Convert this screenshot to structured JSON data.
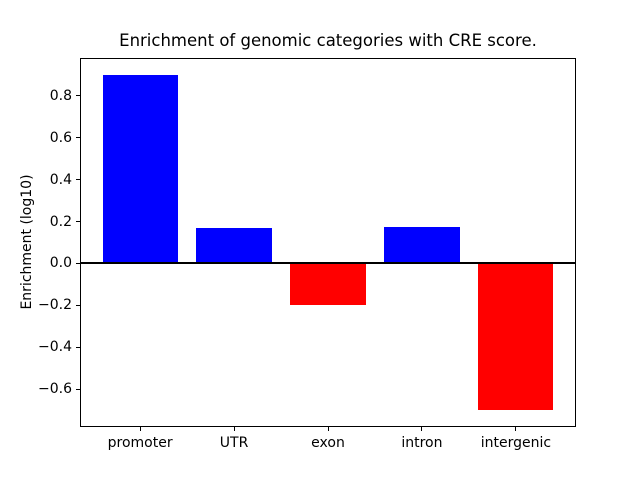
{
  "figure": {
    "title": "Enrichment of genomic categories with CRE score.",
    "ylabel": "Enrichment (log10)"
  },
  "chart_data": {
    "type": "bar",
    "title": "Enrichment of genomic categories with CRE score.",
    "xlabel": "",
    "ylabel": "Enrichment (log10)",
    "categories": [
      "promoter",
      "UTR",
      "exon",
      "intron",
      "intergenic"
    ],
    "values": [
      0.9,
      0.17,
      -0.2,
      0.175,
      -0.7
    ],
    "bar_colors": [
      "#0000ff",
      "#0000ff",
      "#ff0000",
      "#0000ff",
      "#ff0000"
    ],
    "positive_color": "#0000ff",
    "negative_color": "#ff0000",
    "bar_width_fraction": 0.8,
    "xlim": [
      -0.64,
      4.64
    ],
    "ylim": [
      -0.78,
      0.98
    ],
    "yticks": [
      -0.6,
      -0.4,
      -0.2,
      0.0,
      0.2,
      0.4,
      0.6,
      0.8
    ],
    "zero_line": true,
    "grid": false,
    "legend": null
  }
}
